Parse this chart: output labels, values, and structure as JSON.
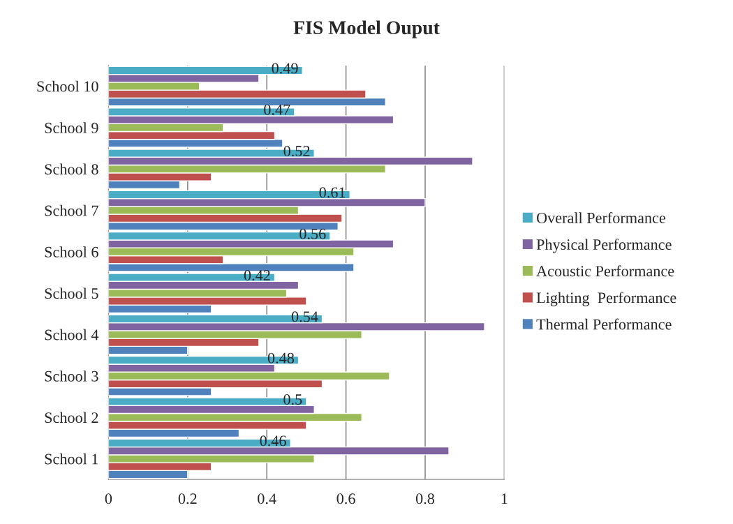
{
  "chart_data": {
    "type": "bar",
    "orientation": "horizontal",
    "title": "FIS Model Ouput",
    "categories": [
      "School 10",
      "School 9",
      "School 8",
      "School 7",
      "School 6",
      "School 5",
      "School 4",
      "School 3",
      "School 2",
      "School 1"
    ],
    "series": [
      {
        "name": "Thermal Performance",
        "color": "#4f81bd",
        "values": [
          0.7,
          0.44,
          0.18,
          0.58,
          0.62,
          0.26,
          0.2,
          0.26,
          0.33,
          0.2
        ]
      },
      {
        "name": "Lighting  Performance",
        "color": "#c0504d",
        "values": [
          0.65,
          0.42,
          0.26,
          0.59,
          0.29,
          0.5,
          0.38,
          0.54,
          0.5,
          0.26
        ]
      },
      {
        "name": "Acoustic Performance",
        "color": "#9bbb59",
        "values": [
          0.23,
          0.29,
          0.7,
          0.48,
          0.62,
          0.45,
          0.64,
          0.71,
          0.64,
          0.52
        ]
      },
      {
        "name": "Physical Performance",
        "color": "#8064a2",
        "values": [
          0.38,
          0.72,
          0.92,
          0.8,
          0.72,
          0.48,
          0.95,
          0.42,
          0.52,
          0.86
        ]
      },
      {
        "name": "Overall Performance",
        "color": "#4bacc6",
        "values": [
          0.49,
          0.47,
          0.52,
          0.61,
          0.56,
          0.42,
          0.54,
          0.48,
          0.5,
          0.46
        ],
        "value_labels": [
          "0.49",
          "0.47",
          "0.52",
          "0.61",
          "0.56",
          "0.42",
          "0.54",
          "0.48",
          "0.5",
          "0.46"
        ]
      }
    ],
    "xlim": [
      0,
      1
    ],
    "xticks": [
      0,
      0.2,
      0.4,
      0.6,
      0.8,
      1
    ],
    "grid": "x",
    "legend": "right"
  }
}
